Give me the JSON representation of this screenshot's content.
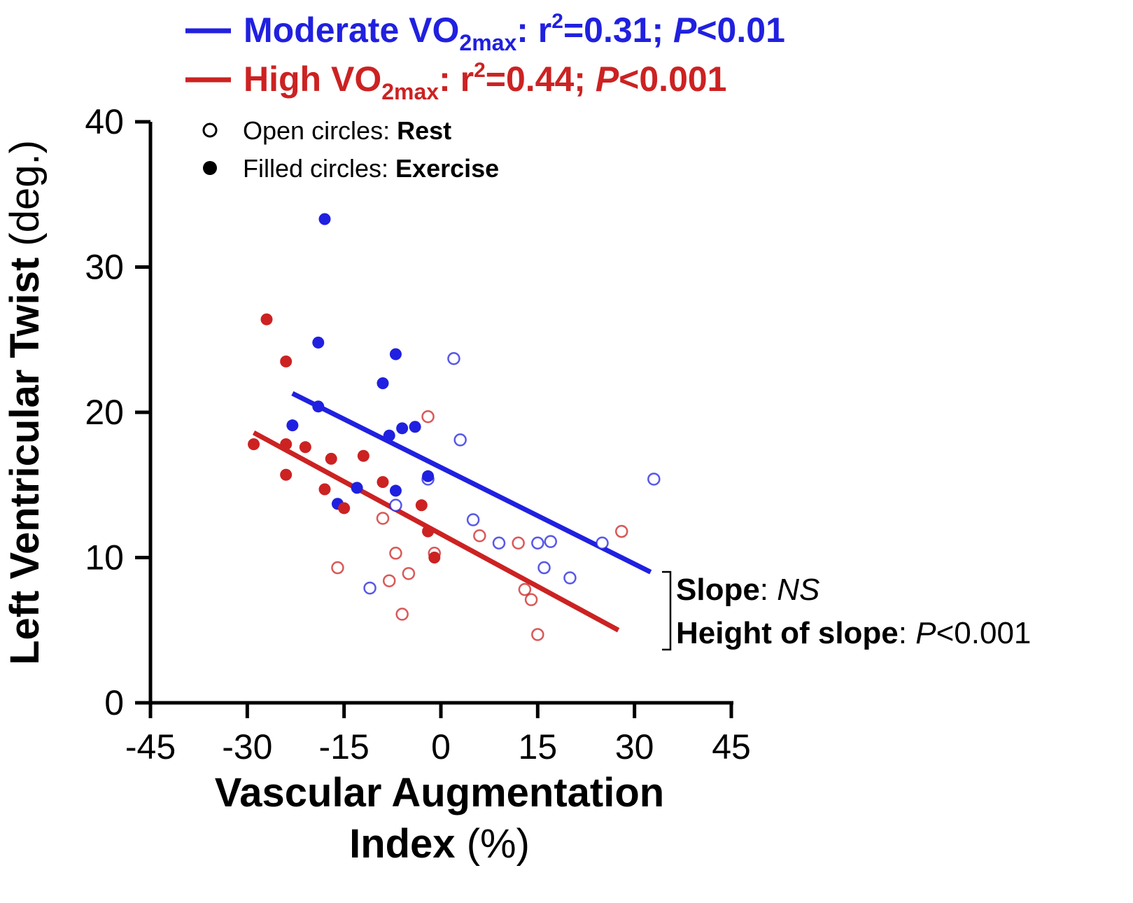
{
  "chart_data": {
    "type": "scatter",
    "title": "",
    "xlabel": {
      "bold": "Vascular Augmentation",
      "line2_bold": "Index",
      "line2_normal": " (%)"
    },
    "ylabel": {
      "bold": "Left Ventricular Twist",
      "normal": " (deg.)"
    },
    "xlim": [
      -45,
      45
    ],
    "ylim": [
      0,
      40
    ],
    "xticks": [
      "-45",
      "-30",
      "-15",
      "0",
      "15",
      "30",
      "45"
    ],
    "yticks": [
      "0",
      "10",
      "20",
      "30",
      "40"
    ],
    "legend": {
      "moderate": {
        "name": "Moderate VO",
        "sub": "2max",
        "stats_a": ": r",
        "sup": "2",
        "stats_b": "=0.31; ",
        "p_italic": "P",
        "stats_c": "<0.01",
        "color": "#2020e0"
      },
      "high": {
        "name": "High VO",
        "sub": "2max",
        "stats_a": ": r",
        "sup": "2",
        "stats_b": "=0.44; ",
        "p_italic": "P",
        "stats_c": "<0.001",
        "color": "#cc2222"
      },
      "open_label": "Open circles: ",
      "open_bold": "Rest",
      "filled_label": "Filled circles: ",
      "filled_bold": "Exercise"
    },
    "annotation": {
      "slope_bold": "Slope",
      "slope_colon": ": ",
      "slope_italic": "NS",
      "height_bold": "Height of slope",
      "height_colon": ": ",
      "height_p": "P",
      "height_val": "<0.001"
    },
    "series": [
      {
        "name": "Moderate VO2max",
        "color": "#2020e0",
        "regression": {
          "x": [
            -23,
            32.5
          ],
          "y": [
            21.3,
            9.0
          ]
        },
        "exercise": [
          [
            -18,
            33.3
          ],
          [
            -19,
            24.8
          ],
          [
            -7,
            24.0
          ],
          [
            -9,
            22.0
          ],
          [
            -23,
            19.1
          ],
          [
            -19,
            20.4
          ],
          [
            -8,
            18.4
          ],
          [
            -6,
            18.9
          ],
          [
            -4,
            19.0
          ],
          [
            -13,
            14.8
          ],
          [
            -7,
            14.6
          ],
          [
            -2,
            15.6
          ],
          [
            -16,
            13.7
          ]
        ],
        "rest": [
          [
            2,
            23.7
          ],
          [
            3,
            18.1
          ],
          [
            -2,
            15.4
          ],
          [
            -7,
            13.6
          ],
          [
            5,
            12.6
          ],
          [
            9,
            11.0
          ],
          [
            15,
            11.0
          ],
          [
            17,
            11.1
          ],
          [
            25,
            11.0
          ],
          [
            33,
            15.4
          ],
          [
            16,
            9.3
          ],
          [
            20,
            8.6
          ],
          [
            -11,
            7.9
          ]
        ]
      },
      {
        "name": "High VO2max",
        "color": "#cc2222",
        "regression": {
          "x": [
            -29,
            27.5
          ],
          "y": [
            18.6,
            5.0
          ]
        },
        "exercise": [
          [
            -27,
            26.4
          ],
          [
            -24,
            23.5
          ],
          [
            -29,
            17.8
          ],
          [
            -24,
            17.8
          ],
          [
            -21,
            17.6
          ],
          [
            -17,
            16.8
          ],
          [
            -12,
            17.0
          ],
          [
            -24,
            15.7
          ],
          [
            -18,
            14.7
          ],
          [
            -9,
            15.2
          ],
          [
            -15,
            13.4
          ],
          [
            -3,
            13.6
          ],
          [
            -2,
            11.8
          ],
          [
            -1,
            10.0
          ]
        ],
        "rest": [
          [
            -2,
            19.7
          ],
          [
            -9,
            12.7
          ],
          [
            6,
            11.5
          ],
          [
            12,
            11.0
          ],
          [
            28,
            11.8
          ],
          [
            -16,
            9.3
          ],
          [
            -7,
            10.3
          ],
          [
            -1,
            10.3
          ],
          [
            -5,
            8.9
          ],
          [
            -8,
            8.4
          ],
          [
            -6,
            6.1
          ],
          [
            13,
            7.8
          ],
          [
            14,
            7.1
          ],
          [
            15,
            4.7
          ]
        ]
      }
    ]
  }
}
